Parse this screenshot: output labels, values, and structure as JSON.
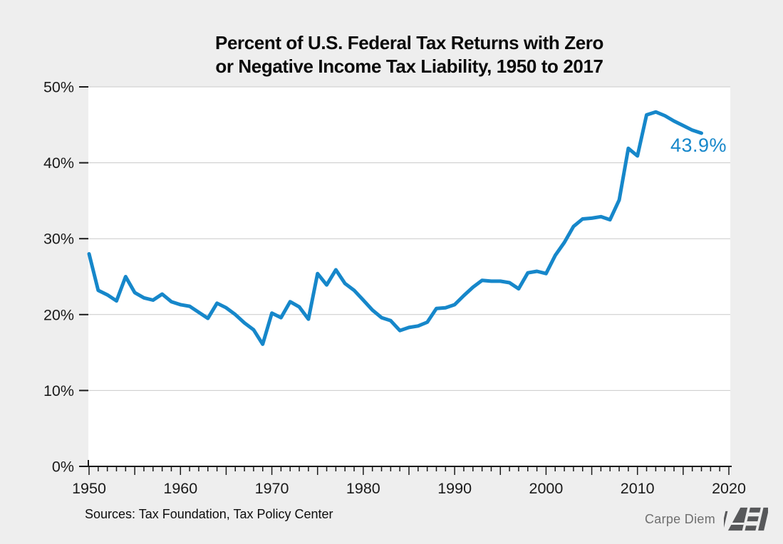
{
  "figure": {
    "title_line1": "Percent of U.S. Federal Tax Returns with Zero",
    "title_line2": "or Negative Income Tax Liability, 1950 to 2017",
    "sources": "Sources: Tax Foundation, Tax Policy Center",
    "branding": {
      "carpe_diem": "Carpe Diem",
      "logo_text": "AEI"
    },
    "annotation": {
      "text": "43.9%",
      "year": 2017,
      "value": 43.9
    },
    "colors": {
      "line": "#1687ca",
      "grid": "#c9c9c9",
      "axis": "#1a1a1a",
      "plot_bg": "#ffffff",
      "figure_bg": "#eeeeee",
      "brand_gray": "#6f6f6f",
      "logo_gray": "#57585a"
    }
  },
  "chart_data": {
    "type": "line",
    "title": "Percent of U.S. Federal Tax Returns with Zero or Negative Income Tax Liability, 1950 to 2017",
    "xlabel": "",
    "ylabel": "",
    "xlim": [
      1950,
      2020
    ],
    "ylim": [
      0,
      50
    ],
    "grid": "horizontal",
    "legend": "none",
    "x_tick_step_minor": 1,
    "x_tick_step_mid": 5,
    "x_tick_labels": [
      "1950",
      "1960",
      "1970",
      "1980",
      "1990",
      "2000",
      "2010",
      "2020"
    ],
    "y_tick_labels": [
      "0%",
      "10%",
      "20%",
      "30%",
      "40%",
      "50%"
    ],
    "x": [
      1950,
      1951,
      1952,
      1953,
      1954,
      1955,
      1956,
      1957,
      1958,
      1959,
      1960,
      1961,
      1962,
      1963,
      1964,
      1965,
      1966,
      1967,
      1968,
      1969,
      1970,
      1971,
      1972,
      1973,
      1974,
      1975,
      1976,
      1977,
      1978,
      1979,
      1980,
      1981,
      1982,
      1983,
      1984,
      1985,
      1986,
      1987,
      1988,
      1989,
      1990,
      1991,
      1992,
      1993,
      1994,
      1995,
      1996,
      1997,
      1998,
      1999,
      2000,
      2001,
      2002,
      2003,
      2004,
      2005,
      2006,
      2007,
      2008,
      2009,
      2010,
      2011,
      2012,
      2013,
      2014,
      2015,
      2016,
      2017
    ],
    "values": [
      28.0,
      23.2,
      22.6,
      21.8,
      25.0,
      22.9,
      22.2,
      21.9,
      22.7,
      21.7,
      21.3,
      21.1,
      20.3,
      19.5,
      21.5,
      20.9,
      20.0,
      18.9,
      18.0,
      16.1,
      20.2,
      19.6,
      21.7,
      21.0,
      19.4,
      25.4,
      23.9,
      25.9,
      24.1,
      23.2,
      21.9,
      20.6,
      19.6,
      19.2,
      17.9,
      18.3,
      18.5,
      19.0,
      20.8,
      20.9,
      21.3,
      22.5,
      23.6,
      24.5,
      24.4,
      24.4,
      24.2,
      23.4,
      25.5,
      25.7,
      25.4,
      27.8,
      29.5,
      31.6,
      32.6,
      32.7,
      32.9,
      32.5,
      35.1,
      41.9,
      40.9,
      46.3,
      46.7,
      46.2,
      45.5,
      44.9,
      44.3,
      43.9
    ]
  }
}
